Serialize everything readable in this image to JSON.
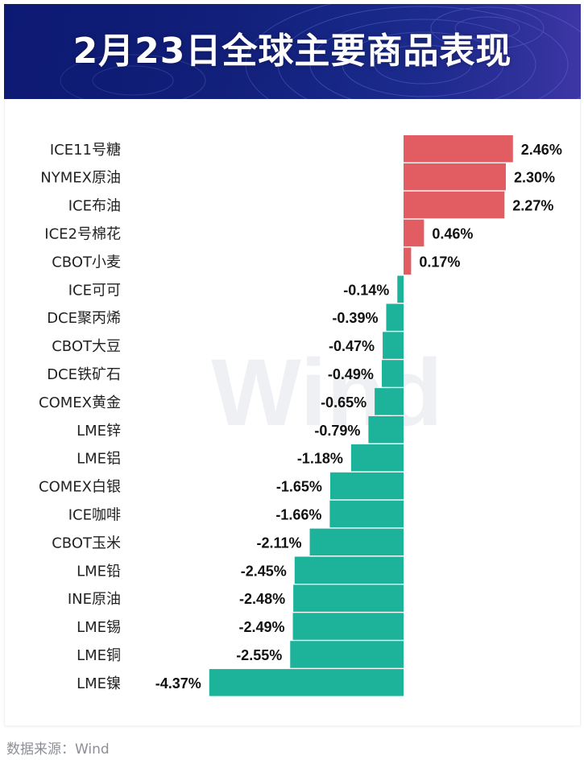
{
  "header": {
    "title": "2月23日全球主要商品表现"
  },
  "watermark": {
    "text": "Wind"
  },
  "footer": {
    "source": "数据来源：Wind"
  },
  "colors": {
    "positive": "#e25d62",
    "negative": "#1db29a",
    "banner": "#14237f"
  },
  "chart_data": {
    "type": "bar",
    "orientation": "horizontal",
    "categories": [
      "ICE11号糖",
      "NYMEX原油",
      "ICE布油",
      "ICE2号棉花",
      "CBOT小麦",
      "ICE可可",
      "DCE聚丙烯",
      "CBOT大豆",
      "DCE铁矿石",
      "COMEX黄金",
      "LME锌",
      "LME铝",
      "COMEX白银",
      "ICE咖啡",
      "CBOT玉米",
      "LME铅",
      "INE原油",
      "LME锡",
      "LME铜",
      "LME镍"
    ],
    "values": [
      2.46,
      2.3,
      2.27,
      0.46,
      0.17,
      -0.14,
      -0.39,
      -0.47,
      -0.49,
      -0.65,
      -0.79,
      -1.18,
      -1.65,
      -1.66,
      -2.11,
      -2.45,
      -2.48,
      -2.49,
      -2.55,
      -4.37
    ],
    "labels": [
      "2.46%",
      "2.30%",
      "2.27%",
      "0.46%",
      "0.17%",
      "-0.14%",
      "-0.39%",
      "-0.47%",
      "-0.49%",
      "-0.65%",
      "-0.79%",
      "-1.18%",
      "-1.65%",
      "-1.66%",
      "-2.11%",
      "-2.45%",
      "-2.48%",
      "-2.49%",
      "-2.55%",
      "-4.37%"
    ],
    "title": "2月23日全球主要商品表现",
    "xlabel": "",
    "ylabel": "",
    "unit": "%",
    "xlim": [
      -4.37,
      2.46
    ],
    "grid": false,
    "legend": "none"
  }
}
